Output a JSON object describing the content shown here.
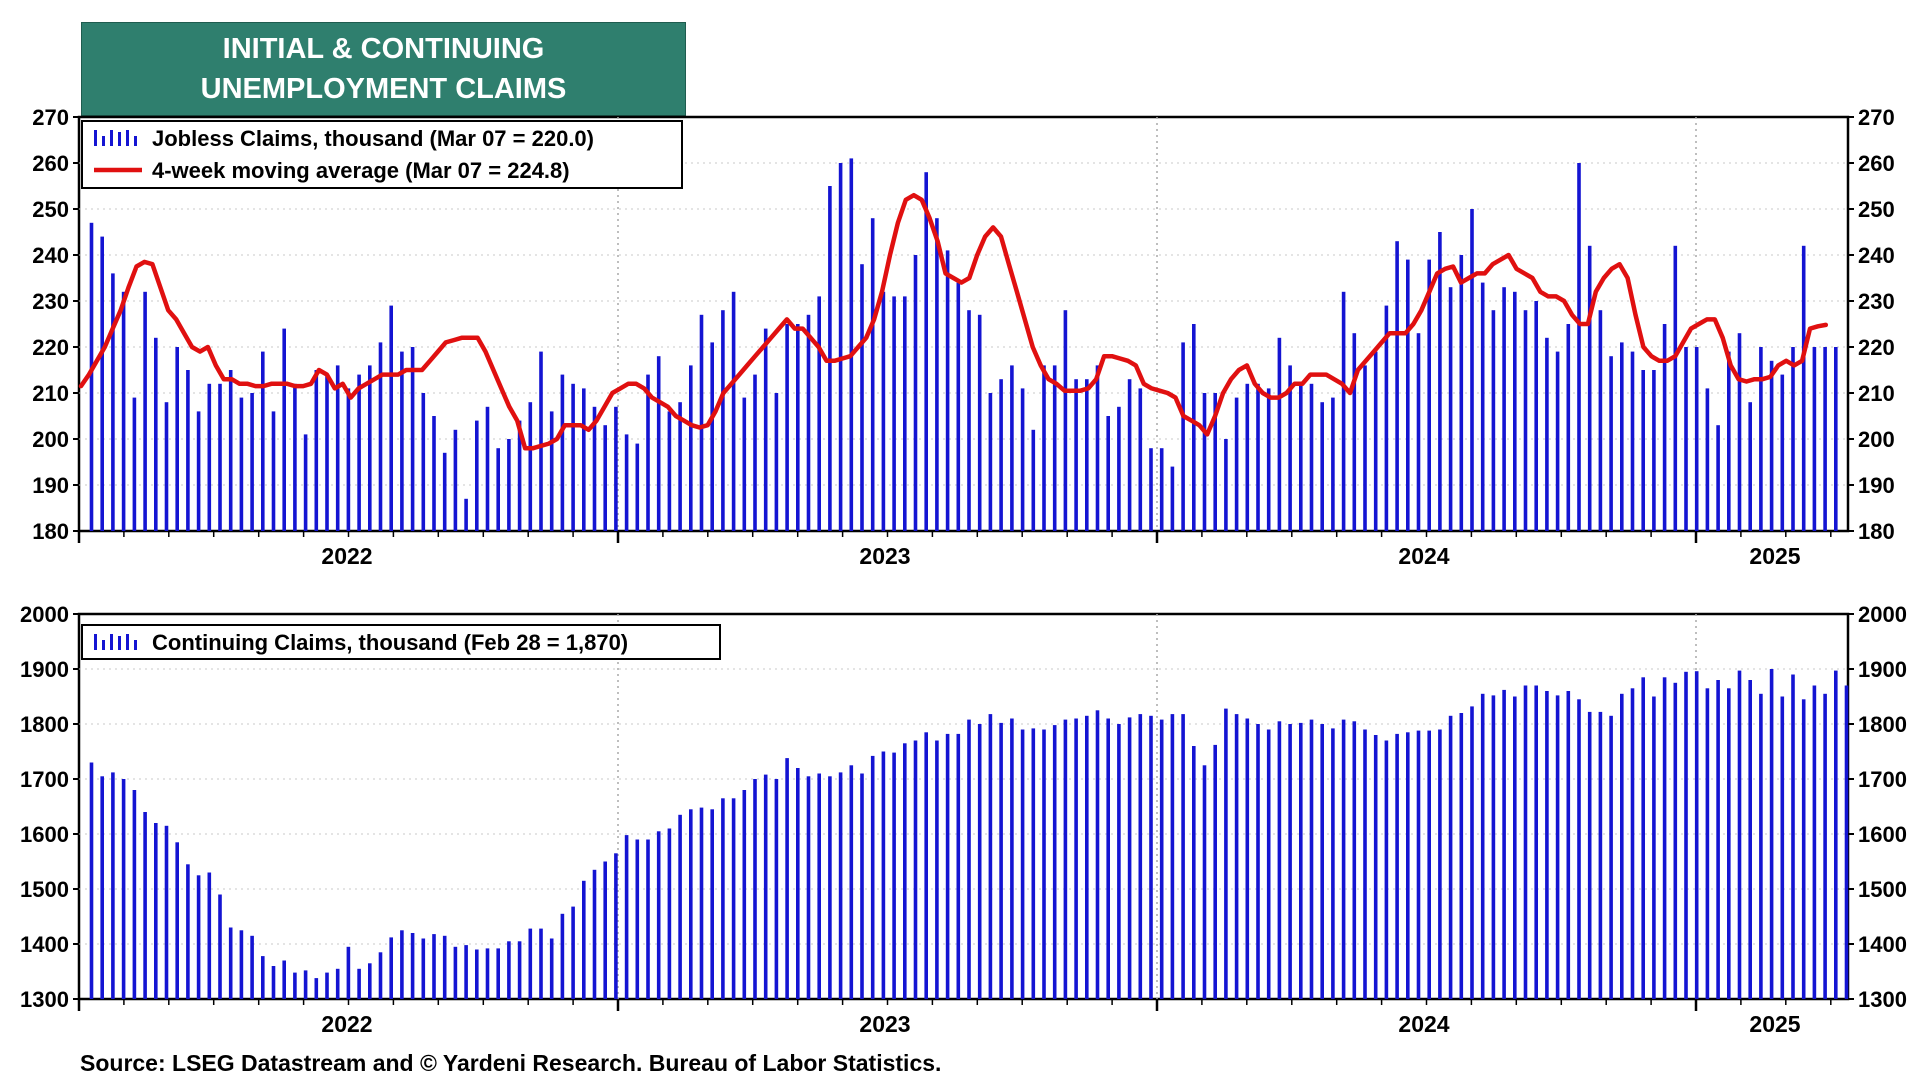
{
  "title_lines": [
    "INITIAL & CONTINUING",
    "UNEMPLOYMENT CLAIMS"
  ],
  "source": "Source: LSEG Datastream and © Yardeni Research. Bureau of Labor Statistics.",
  "colors": {
    "bars": "#1414d2",
    "moving_average": "#e01010",
    "title_bg": "#2f7f6e"
  },
  "chart_data": [
    {
      "type": "bar",
      "x_tick_labels": [
        "2022",
        "2023",
        "2024",
        "2025"
      ],
      "yticks": [
        "180",
        "190",
        "200",
        "210",
        "220",
        "230",
        "240",
        "250",
        "260",
        "270"
      ],
      "ylim": [
        180,
        270
      ],
      "legend_position": "top-left",
      "grid": true,
      "series": [
        {
          "name": "Jobless Claims, thousand (Mar 07 = 220.0)",
          "kind": "bar",
          "values": [
            247,
            244,
            236,
            232,
            209,
            232,
            222,
            208,
            220,
            215,
            206,
            212,
            212,
            215,
            209,
            210,
            219,
            206,
            224,
            212,
            201,
            215,
            214,
            216,
            211,
            214,
            216,
            221,
            229,
            219,
            220,
            210,
            205,
            197,
            202,
            187,
            204,
            207,
            198,
            200,
            204,
            208,
            219,
            206,
            214,
            212,
            211,
            207,
            203,
            207,
            201,
            199,
            214,
            218,
            206,
            208,
            216,
            227,
            221,
            228,
            232,
            209,
            214,
            224,
            210,
            225,
            225,
            227,
            231,
            255,
            260,
            261,
            238,
            248,
            232,
            231,
            231,
            240,
            258,
            248,
            241,
            234,
            228,
            227,
            210,
            213,
            216,
            211,
            202,
            216,
            216,
            228,
            213,
            213,
            216,
            205,
            207,
            213,
            211,
            198,
            198,
            194,
            221,
            225,
            210,
            210,
            200,
            209,
            212,
            212,
            211,
            222,
            216,
            212,
            212,
            208,
            209,
            232,
            223,
            216,
            219,
            229,
            243,
            239,
            223,
            239,
            245,
            233,
            240,
            250,
            234,
            228,
            233,
            232,
            228,
            230,
            222,
            219,
            225,
            260,
            242,
            228,
            218,
            221,
            219,
            215,
            215,
            225,
            242,
            220,
            220,
            211,
            203,
            219,
            223,
            208,
            220,
            217,
            214,
            220,
            242,
            220,
            220,
            220
          ],
          "last_value": 220.0
        },
        {
          "name": "4-week moving average (Mar 07 = 224.8)",
          "kind": "line",
          "values": [
            211.5,
            214,
            217,
            220,
            224,
            228,
            233,
            237.5,
            238.5,
            238,
            233,
            228,
            226,
            223,
            220,
            219,
            220,
            216,
            213,
            213,
            212,
            212,
            211.5,
            211.5,
            212,
            212,
            212,
            211.5,
            211.5,
            212,
            215,
            214,
            211,
            212,
            209,
            211,
            212,
            213,
            214,
            214,
            214,
            215,
            215,
            215,
            217,
            219,
            221,
            221.5,
            222,
            222,
            222,
            219,
            215,
            211,
            207,
            204,
            198,
            198,
            198.5,
            199,
            200,
            203,
            203,
            203,
            202,
            204,
            207,
            210,
            211,
            212,
            212,
            211,
            209,
            208,
            207,
            205,
            204,
            203,
            202.5,
            203,
            206,
            210,
            212,
            214,
            216,
            218,
            220,
            222,
            224,
            226,
            224,
            224,
            222,
            220,
            217,
            217,
            217.5,
            218,
            220,
            222,
            226,
            232,
            240,
            247,
            252,
            253,
            252,
            248,
            243,
            236,
            235,
            234,
            235,
            240,
            244,
            246,
            244,
            238,
            232,
            226,
            220,
            216,
            213,
            212,
            210.5,
            210.5,
            210.5,
            211,
            213,
            218,
            218,
            217.5,
            217,
            216,
            212,
            211,
            210.5,
            210,
            209,
            205,
            204,
            203,
            201,
            205,
            210,
            213,
            215,
            216,
            212,
            210,
            209,
            209,
            210,
            212,
            212,
            214,
            214,
            214,
            213,
            212,
            210,
            215,
            217,
            219,
            221,
            223,
            223,
            223,
            225,
            228,
            232,
            236,
            237,
            237.5,
            234,
            235,
            236,
            236,
            238,
            239,
            240,
            237,
            236,
            235,
            232,
            231,
            231,
            230,
            227,
            225,
            225,
            232,
            235,
            237,
            238,
            235,
            227,
            220,
            218,
            217,
            217,
            218,
            221,
            224,
            225,
            226,
            226,
            222,
            216,
            213,
            212.5,
            213,
            213,
            213.5,
            216,
            217,
            216,
            217,
            224,
            224.5,
            224.8
          ],
          "last_value": 224.8
        }
      ]
    },
    {
      "type": "bar",
      "x_tick_labels": [
        "2022",
        "2023",
        "2024",
        "2025"
      ],
      "yticks": [
        "1300",
        "1400",
        "1500",
        "1600",
        "1700",
        "1800",
        "1900",
        "2000"
      ],
      "ylim": [
        1300,
        2000
      ],
      "legend_position": "top-left",
      "grid": true,
      "series": [
        {
          "name": "Continuing Claims, thousand (Feb 28 = 1,870)",
          "kind": "bar",
          "values": [
            1730,
            1705,
            1712,
            1700,
            1680,
            1640,
            1620,
            1615,
            1585,
            1545,
            1525,
            1530,
            1490,
            1430,
            1425,
            1415,
            1378,
            1360,
            1370,
            1348,
            1352,
            1338,
            1348,
            1355,
            1395,
            1355,
            1365,
            1385,
            1412,
            1425,
            1420,
            1410,
            1418,
            1415,
            1395,
            1398,
            1390,
            1392,
            1392,
            1405,
            1405,
            1428,
            1428,
            1410,
            1455,
            1468,
            1515,
            1535,
            1550,
            1565,
            1598,
            1590,
            1590,
            1605,
            1610,
            1635,
            1645,
            1648,
            1645,
            1665,
            1665,
            1680,
            1700,
            1708,
            1700,
            1738,
            1720,
            1705,
            1710,
            1705,
            1712,
            1725,
            1710,
            1742,
            1750,
            1748,
            1765,
            1770,
            1785,
            1770,
            1782,
            1782,
            1808,
            1800,
            1818,
            1802,
            1810,
            1790,
            1792,
            1790,
            1798,
            1808,
            1810,
            1815,
            1825,
            1810,
            1800,
            1812,
            1818,
            1815,
            1808,
            1818,
            1818,
            1760,
            1725,
            1762,
            1828,
            1818,
            1810,
            1800,
            1790,
            1805,
            1800,
            1802,
            1808,
            1800,
            1792,
            1808,
            1805,
            1790,
            1780,
            1770,
            1782,
            1785,
            1788,
            1788,
            1790,
            1815,
            1820,
            1832,
            1855,
            1852,
            1862,
            1850,
            1870,
            1870,
            1860,
            1852,
            1860,
            1845,
            1822,
            1822,
            1815,
            1855,
            1865,
            1885,
            1850,
            1885,
            1875,
            1895,
            1896,
            1865,
            1880,
            1865,
            1897,
            1880,
            1855,
            1900,
            1850,
            1890,
            1845,
            1870,
            1855,
            1897,
            1870
          ],
          "last_value": 1870
        }
      ]
    }
  ]
}
